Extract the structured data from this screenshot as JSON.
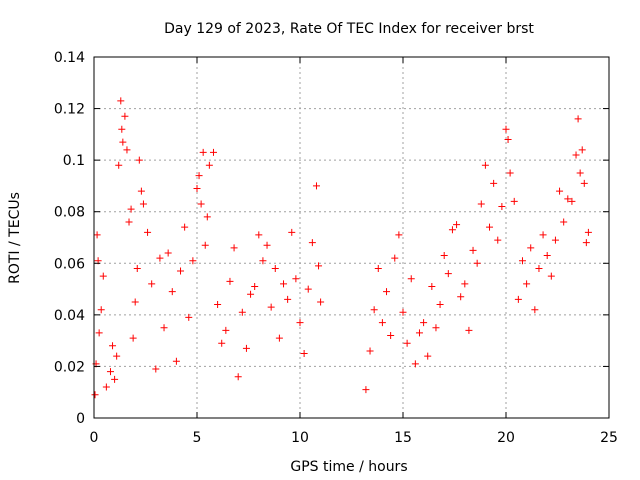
{
  "chart_data": {
    "type": "scatter",
    "title": "Day 129 of 2023, Rate Of TEC Index for receiver brst",
    "xlabel": "GPS time / hours",
    "ylabel": "ROTI / TECUs",
    "xlim": [
      0,
      25
    ],
    "ylim": [
      0,
      0.14
    ],
    "x_ticks": [
      0,
      5,
      10,
      15,
      20,
      25
    ],
    "x_tick_labels": [
      "0",
      "5",
      "10",
      "15",
      "20",
      "25"
    ],
    "y_ticks": [
      0,
      0.02,
      0.04,
      0.06,
      0.08,
      0.1,
      0.12,
      0.14
    ],
    "y_tick_labels": [
      "0",
      "0.02",
      "0.04",
      "0.06",
      "0.08",
      "0.1",
      "0.12",
      "0.14"
    ],
    "grid": true,
    "marker": "plus",
    "color": "#ff0000",
    "data_gap_hours": [
      11.1,
      13.2
    ],
    "series": [
      {
        "points": [
          [
            0.05,
            0.009
          ],
          [
            0.1,
            0.021
          ],
          [
            0.15,
            0.071
          ],
          [
            0.2,
            0.061
          ],
          [
            0.25,
            0.033
          ],
          [
            0.35,
            0.042
          ],
          [
            0.45,
            0.055
          ],
          [
            0.6,
            0.012
          ],
          [
            0.8,
            0.018
          ],
          [
            0.9,
            0.028
          ],
          [
            1.0,
            0.015
          ],
          [
            1.1,
            0.024
          ],
          [
            1.2,
            0.098
          ],
          [
            1.3,
            0.123
          ],
          [
            1.35,
            0.112
          ],
          [
            1.4,
            0.107
          ],
          [
            1.5,
            0.117
          ],
          [
            1.6,
            0.104
          ],
          [
            1.7,
            0.076
          ],
          [
            1.8,
            0.081
          ],
          [
            1.9,
            0.031
          ],
          [
            2.0,
            0.045
          ],
          [
            2.1,
            0.058
          ],
          [
            2.2,
            0.1
          ],
          [
            2.3,
            0.088
          ],
          [
            2.4,
            0.083
          ],
          [
            2.6,
            0.072
          ],
          [
            2.8,
            0.052
          ],
          [
            3.0,
            0.019
          ],
          [
            3.2,
            0.062
          ],
          [
            3.4,
            0.035
          ],
          [
            3.6,
            0.064
          ],
          [
            3.8,
            0.049
          ],
          [
            4.0,
            0.022
          ],
          [
            4.2,
            0.057
          ],
          [
            4.4,
            0.074
          ],
          [
            4.6,
            0.039
          ],
          [
            4.8,
            0.061
          ],
          [
            5.0,
            0.089
          ],
          [
            5.1,
            0.094
          ],
          [
            5.2,
            0.083
          ],
          [
            5.3,
            0.103
          ],
          [
            5.4,
            0.067
          ],
          [
            5.5,
            0.078
          ],
          [
            5.6,
            0.098
          ],
          [
            5.8,
            0.103
          ],
          [
            6.0,
            0.044
          ],
          [
            6.2,
            0.029
          ],
          [
            6.4,
            0.034
          ],
          [
            6.6,
            0.053
          ],
          [
            6.8,
            0.066
          ],
          [
            7.0,
            0.016
          ],
          [
            7.2,
            0.041
          ],
          [
            7.4,
            0.027
          ],
          [
            7.6,
            0.048
          ],
          [
            7.8,
            0.051
          ],
          [
            8.0,
            0.071
          ],
          [
            8.2,
            0.061
          ],
          [
            8.4,
            0.067
          ],
          [
            8.6,
            0.043
          ],
          [
            8.8,
            0.058
          ],
          [
            9.0,
            0.031
          ],
          [
            9.2,
            0.052
          ],
          [
            9.4,
            0.046
          ],
          [
            9.6,
            0.072
          ],
          [
            9.8,
            0.054
          ],
          [
            10.0,
            0.037
          ],
          [
            10.2,
            0.025
          ],
          [
            10.4,
            0.05
          ],
          [
            10.6,
            0.068
          ],
          [
            10.8,
            0.09
          ],
          [
            10.9,
            0.059
          ],
          [
            11.0,
            0.045
          ],
          [
            13.2,
            0.011
          ],
          [
            13.4,
            0.026
          ],
          [
            13.6,
            0.042
          ],
          [
            13.8,
            0.058
          ],
          [
            14.0,
            0.037
          ],
          [
            14.2,
            0.049
          ],
          [
            14.4,
            0.032
          ],
          [
            14.6,
            0.062
          ],
          [
            14.8,
            0.071
          ],
          [
            15.0,
            0.041
          ],
          [
            15.2,
            0.029
          ],
          [
            15.4,
            0.054
          ],
          [
            15.6,
            0.021
          ],
          [
            15.8,
            0.033
          ],
          [
            16.0,
            0.037
          ],
          [
            16.2,
            0.024
          ],
          [
            16.4,
            0.051
          ],
          [
            16.6,
            0.035
          ],
          [
            16.8,
            0.044
          ],
          [
            17.0,
            0.063
          ],
          [
            17.2,
            0.056
          ],
          [
            17.4,
            0.073
          ],
          [
            17.6,
            0.075
          ],
          [
            17.8,
            0.047
          ],
          [
            18.0,
            0.052
          ],
          [
            18.2,
            0.034
          ],
          [
            18.4,
            0.065
          ],
          [
            18.6,
            0.06
          ],
          [
            18.8,
            0.083
          ],
          [
            19.0,
            0.098
          ],
          [
            19.2,
            0.074
          ],
          [
            19.4,
            0.091
          ],
          [
            19.6,
            0.069
          ],
          [
            19.8,
            0.082
          ],
          [
            20.0,
            0.112
          ],
          [
            20.1,
            0.108
          ],
          [
            20.2,
            0.095
          ],
          [
            20.4,
            0.084
          ],
          [
            20.6,
            0.046
          ],
          [
            20.8,
            0.061
          ],
          [
            21.0,
            0.052
          ],
          [
            21.2,
            0.066
          ],
          [
            21.4,
            0.042
          ],
          [
            21.6,
            0.058
          ],
          [
            21.8,
            0.071
          ],
          [
            22.0,
            0.063
          ],
          [
            22.2,
            0.055
          ],
          [
            22.4,
            0.069
          ],
          [
            22.6,
            0.088
          ],
          [
            22.8,
            0.076
          ],
          [
            23.0,
            0.085
          ],
          [
            23.2,
            0.084
          ],
          [
            23.4,
            0.102
          ],
          [
            23.5,
            0.116
          ],
          [
            23.6,
            0.095
          ],
          [
            23.7,
            0.104
          ],
          [
            23.8,
            0.091
          ],
          [
            23.9,
            0.068
          ],
          [
            24.0,
            0.072
          ]
        ]
      }
    ]
  }
}
